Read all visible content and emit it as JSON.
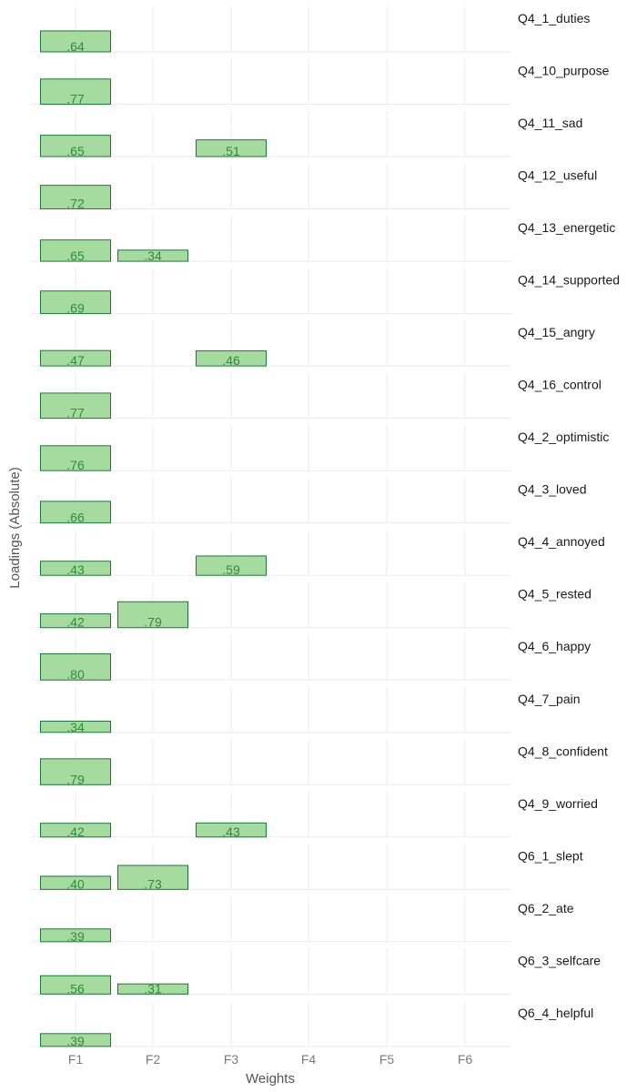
{
  "chart_data": {
    "type": "bar",
    "facet": "rows",
    "xlabel": "Weights",
    "ylabel": "Loadings (Absolute)",
    "categories": [
      "F1",
      "F2",
      "F3",
      "F4",
      "F5",
      "F6"
    ],
    "ylim": [
      0,
      1
    ],
    "grid": true,
    "colors": {
      "bar_fill": "#a6dba0",
      "bar_stroke": "#1b7837",
      "label": "#2e8b3c",
      "grid": "#ebebeb"
    },
    "panels": [
      {
        "name": "Q4_1_duties",
        "bars": [
          {
            "factor": "F1",
            "value": 0.64,
            "label": ".64"
          }
        ]
      },
      {
        "name": "Q4_10_purpose",
        "bars": [
          {
            "factor": "F1",
            "value": 0.77,
            "label": ".77"
          }
        ]
      },
      {
        "name": "Q4_11_sad",
        "bars": [
          {
            "factor": "F1",
            "value": 0.65,
            "label": ".65"
          },
          {
            "factor": "F3",
            "value": 0.51,
            "label": ".51"
          }
        ]
      },
      {
        "name": "Q4_12_useful",
        "bars": [
          {
            "factor": "F1",
            "value": 0.72,
            "label": ".72"
          }
        ]
      },
      {
        "name": "Q4_13_energetic",
        "bars": [
          {
            "factor": "F1",
            "value": 0.65,
            "label": ".65"
          },
          {
            "factor": "F2",
            "value": 0.34,
            "label": ".34"
          }
        ]
      },
      {
        "name": "Q4_14_supported",
        "bars": [
          {
            "factor": "F1",
            "value": 0.69,
            "label": ".69"
          }
        ]
      },
      {
        "name": "Q4_15_angry",
        "bars": [
          {
            "factor": "F1",
            "value": 0.47,
            "label": ".47"
          },
          {
            "factor": "F3",
            "value": 0.46,
            "label": ".46"
          }
        ]
      },
      {
        "name": "Q4_16_control",
        "bars": [
          {
            "factor": "F1",
            "value": 0.77,
            "label": ".77"
          }
        ]
      },
      {
        "name": "Q4_2_optimistic",
        "bars": [
          {
            "factor": "F1",
            "value": 0.76,
            "label": ".76"
          }
        ]
      },
      {
        "name": "Q4_3_loved",
        "bars": [
          {
            "factor": "F1",
            "value": 0.66,
            "label": ".66"
          }
        ]
      },
      {
        "name": "Q4_4_annoyed",
        "bars": [
          {
            "factor": "F1",
            "value": 0.43,
            "label": ".43"
          },
          {
            "factor": "F3",
            "value": 0.59,
            "label": ".59"
          }
        ]
      },
      {
        "name": "Q4_5_rested",
        "bars": [
          {
            "factor": "F1",
            "value": 0.42,
            "label": ".42"
          },
          {
            "factor": "F2",
            "value": 0.79,
            "label": ".79"
          }
        ]
      },
      {
        "name": "Q4_6_happy",
        "bars": [
          {
            "factor": "F1",
            "value": 0.8,
            "label": ".80"
          }
        ]
      },
      {
        "name": "Q4_7_pain",
        "bars": [
          {
            "factor": "F1",
            "value": 0.34,
            "label": ".34"
          }
        ]
      },
      {
        "name": "Q4_8_confident",
        "bars": [
          {
            "factor": "F1",
            "value": 0.79,
            "label": ".79"
          }
        ]
      },
      {
        "name": "Q4_9_worried",
        "bars": [
          {
            "factor": "F1",
            "value": 0.42,
            "label": ".42"
          },
          {
            "factor": "F3",
            "value": 0.43,
            "label": ".43"
          }
        ]
      },
      {
        "name": "Q6_1_slept",
        "bars": [
          {
            "factor": "F1",
            "value": 0.4,
            "label": ".40"
          },
          {
            "factor": "F2",
            "value": 0.73,
            "label": ".73"
          }
        ]
      },
      {
        "name": "Q6_2_ate",
        "bars": [
          {
            "factor": "F1",
            "value": 0.39,
            "label": ".39"
          }
        ]
      },
      {
        "name": "Q6_3_selfcare",
        "bars": [
          {
            "factor": "F1",
            "value": 0.56,
            "label": ".56"
          },
          {
            "factor": "F2",
            "value": 0.31,
            "label": ".31"
          }
        ]
      },
      {
        "name": "Q6_4_helpful",
        "bars": [
          {
            "factor": "F1",
            "value": 0.39,
            "label": ".39"
          }
        ]
      }
    ]
  }
}
